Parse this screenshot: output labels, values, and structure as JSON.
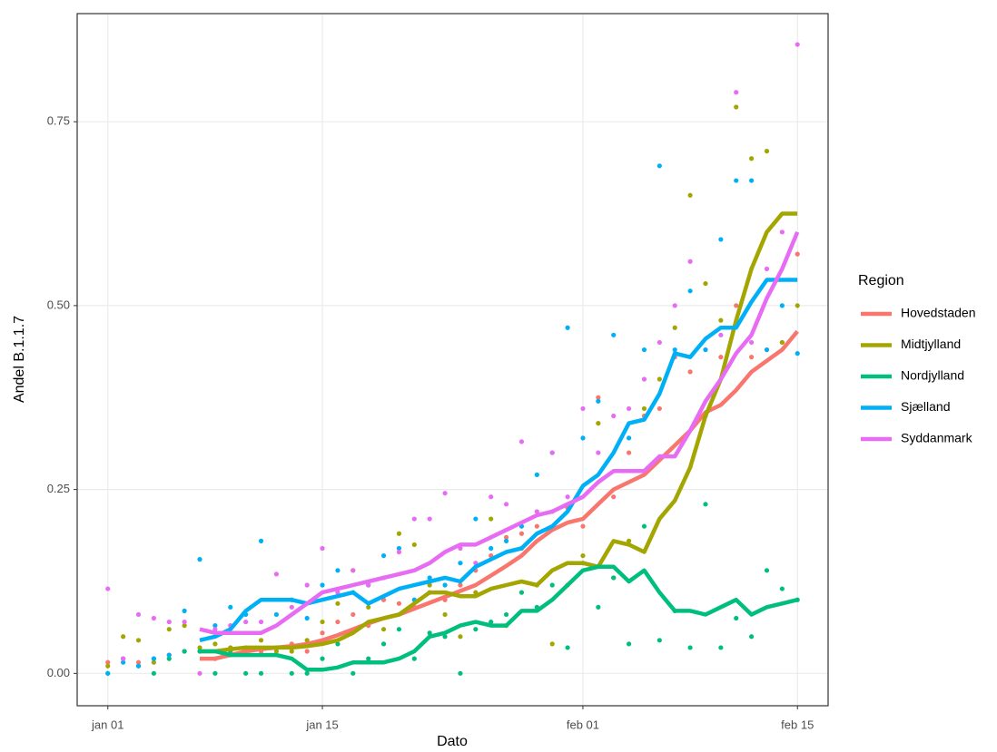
{
  "chart_data": {
    "type": "line",
    "x_label": "Dato",
    "y_label": "Andel B.1.1.7",
    "legend_title": "Region",
    "legend_position": "right",
    "grid": true,
    "x": [
      "01-01",
      "01-02",
      "01-03",
      "01-04",
      "01-05",
      "01-06",
      "01-07",
      "01-08",
      "01-09",
      "01-10",
      "01-11",
      "01-12",
      "01-13",
      "01-14",
      "01-15",
      "01-16",
      "01-17",
      "01-18",
      "01-19",
      "01-20",
      "01-21",
      "01-22",
      "01-23",
      "01-24",
      "01-25",
      "01-26",
      "01-27",
      "01-28",
      "01-29",
      "01-30",
      "01-31",
      "02-01",
      "02-02",
      "02-03",
      "02-04",
      "02-05",
      "02-06",
      "02-07",
      "02-08",
      "02-09",
      "02-10",
      "02-11",
      "02-12",
      "02-13",
      "02-14",
      "02-15"
    ],
    "xlim": [
      "12-30",
      "02-17"
    ],
    "xticks": [
      {
        "value": "01-01",
        "label": "jan 01"
      },
      {
        "value": "01-15",
        "label": "jan 15"
      },
      {
        "value": "02-01",
        "label": "feb 01"
      },
      {
        "value": "02-15",
        "label": "feb 15"
      }
    ],
    "ylim": [
      -0.044,
      0.897
    ],
    "yticks": [
      {
        "value": 0,
        "label": "0.00"
      },
      {
        "value": 0.25,
        "label": "0.25"
      },
      {
        "value": 0.5,
        "label": "0.50"
      },
      {
        "value": 0.75,
        "label": "0.75"
      }
    ],
    "series": [
      {
        "name": "Hovedstaden",
        "color": "#F8766D",
        "values": [
          0.015,
          0.02,
          0.015,
          0.02,
          0.025,
          0.03,
          0.03,
          0.02,
          0.025,
          0.035,
          0.03,
          0.035,
          0.04,
          0.03,
          0.055,
          0.07,
          0.08,
          0.065,
          0.1,
          0.095,
          0.09,
          0.11,
          0.1,
          0.12,
          0.14,
          0.16,
          0.185,
          0.19,
          0.2,
          0.22,
          0.225,
          0.2,
          0.375,
          0.24,
          0.3,
          0.35,
          0.36,
          0.43,
          0.41,
          0.44,
          0.43,
          0.5,
          0.43,
          0.44,
          0.45,
          0.57
        ],
        "trend": [
          null,
          null,
          null,
          null,
          null,
          null,
          0.02,
          0.02,
          0.025,
          0.03,
          0.033,
          0.035,
          0.037,
          0.04,
          0.045,
          0.052,
          0.06,
          0.068,
          0.075,
          0.08,
          0.088,
          0.096,
          0.104,
          0.112,
          0.12,
          0.133,
          0.146,
          0.16,
          0.18,
          0.195,
          0.205,
          0.21,
          0.23,
          0.25,
          0.26,
          0.27,
          0.29,
          0.31,
          0.33,
          0.355,
          0.365,
          0.385,
          0.41,
          0.425,
          0.44,
          0.465
        ]
      },
      {
        "name": "Midtjylland",
        "color": "#A3A500",
        "values": [
          0.01,
          0.05,
          0.045,
          0.015,
          0.06,
          0.065,
          0.035,
          0.04,
          0.035,
          0.03,
          0.045,
          0.03,
          0.03,
          0.045,
          0.07,
          0.095,
          0.14,
          0.09,
          0.06,
          0.19,
          0.175,
          0.12,
          0.08,
          0.05,
          0.11,
          0.21,
          0.065,
          0.17,
          0.12,
          0.04,
          0.12,
          0.16,
          0.34,
          0.13,
          0.18,
          0.36,
          0.4,
          0.47,
          0.65,
          0.53,
          0.48,
          0.77,
          0.7,
          0.71,
          0.45,
          0.5
        ],
        "trend": [
          null,
          null,
          null,
          null,
          null,
          null,
          0.03,
          0.03,
          0.033,
          0.035,
          0.035,
          0.035,
          0.035,
          0.037,
          0.04,
          0.045,
          0.055,
          0.07,
          0.075,
          0.08,
          0.095,
          0.11,
          0.11,
          0.105,
          0.105,
          0.115,
          0.12,
          0.125,
          0.12,
          0.14,
          0.15,
          0.15,
          0.145,
          0.18,
          0.175,
          0.165,
          0.21,
          0.235,
          0.28,
          0.35,
          0.4,
          0.48,
          0.55,
          0.6,
          0.625,
          0.625
        ]
      },
      {
        "name": "Nordjylland",
        "color": "#00BF7D",
        "values": [
          0,
          0.02,
          0.01,
          0,
          0.02,
          0.03,
          0.03,
          0,
          0.03,
          0,
          0,
          0.035,
          0,
          0,
          0.02,
          0.04,
          0,
          0.02,
          0.04,
          0.06,
          0.02,
          0.055,
          0.05,
          0,
          0.06,
          0.07,
          0.08,
          0.11,
          0.09,
          0.12,
          0.035,
          0.15,
          0.09,
          0.13,
          0.04,
          0.2,
          0.045,
          0.085,
          0.035,
          0.23,
          0.035,
          0.075,
          0.05,
          0.14,
          0.115,
          0.1
        ],
        "trend": [
          null,
          null,
          null,
          null,
          null,
          null,
          0.03,
          0.03,
          0.025,
          0.025,
          0.025,
          0.025,
          0.02,
          0.005,
          0.005,
          0.008,
          0.015,
          0.015,
          0.015,
          0.02,
          0.03,
          0.05,
          0.055,
          0.065,
          0.07,
          0.065,
          0.065,
          0.085,
          0.085,
          0.1,
          0.12,
          0.14,
          0.145,
          0.145,
          0.125,
          0.14,
          0.11,
          0.085,
          0.085,
          0.08,
          0.09,
          0.1,
          0.08,
          0.09,
          0.095,
          0.1
        ]
      },
      {
        "name": "Sjælland",
        "color": "#00B0F6",
        "values": [
          0,
          0.015,
          0.01,
          0.02,
          0.025,
          0.085,
          0.155,
          0.065,
          0.09,
          0.08,
          0.18,
          0.08,
          0.1,
          0.075,
          0.12,
          0.14,
          0.11,
          0.12,
          0.16,
          0.17,
          0.1,
          0.13,
          0.12,
          0.15,
          0.21,
          0.17,
          0.18,
          0.2,
          0.27,
          0.3,
          0.47,
          0.32,
          0.37,
          0.46,
          0.32,
          0.44,
          0.69,
          0.44,
          0.52,
          0.44,
          0.59,
          0.67,
          0.67,
          0.44,
          0.5,
          0.435
        ],
        "trend": [
          null,
          null,
          null,
          null,
          null,
          null,
          0.045,
          0.05,
          0.06,
          0.085,
          0.1,
          0.1,
          0.1,
          0.095,
          0.1,
          0.105,
          0.11,
          0.095,
          0.105,
          0.115,
          0.12,
          0.125,
          0.13,
          0.125,
          0.145,
          0.155,
          0.165,
          0.17,
          0.19,
          0.2,
          0.22,
          0.255,
          0.27,
          0.3,
          0.34,
          0.345,
          0.38,
          0.435,
          0.43,
          0.455,
          0.47,
          0.47,
          0.505,
          0.535,
          0.535,
          0.535
        ]
      },
      {
        "name": "Syddanmark",
        "color": "#E76BF3",
        "values": [
          0.115,
          0.02,
          0.08,
          0.075,
          0.07,
          0.07,
          0,
          0.06,
          0.065,
          0.07,
          0.07,
          0.135,
          0.09,
          0.12,
          0.17,
          0.11,
          0.14,
          0.12,
          0.13,
          0.165,
          0.21,
          0.21,
          0.245,
          0.17,
          0.15,
          0.24,
          0.23,
          0.315,
          0.22,
          0.3,
          0.24,
          0.36,
          0.3,
          0.35,
          0.36,
          0.4,
          0.45,
          0.5,
          0.56,
          0.35,
          0.46,
          0.79,
          0.45,
          0.55,
          0.6,
          0.855
        ],
        "trend": [
          null,
          null,
          null,
          null,
          null,
          null,
          0.06,
          0.055,
          0.055,
          0.055,
          0.055,
          0.065,
          0.08,
          0.095,
          0.11,
          0.115,
          0.12,
          0.125,
          0.13,
          0.135,
          0.14,
          0.15,
          0.165,
          0.175,
          0.175,
          0.185,
          0.195,
          0.205,
          0.215,
          0.22,
          0.23,
          0.24,
          0.26,
          0.275,
          0.275,
          0.275,
          0.295,
          0.295,
          0.33,
          0.37,
          0.4,
          0.435,
          0.46,
          0.51,
          0.55,
          0.6
        ]
      }
    ]
  }
}
